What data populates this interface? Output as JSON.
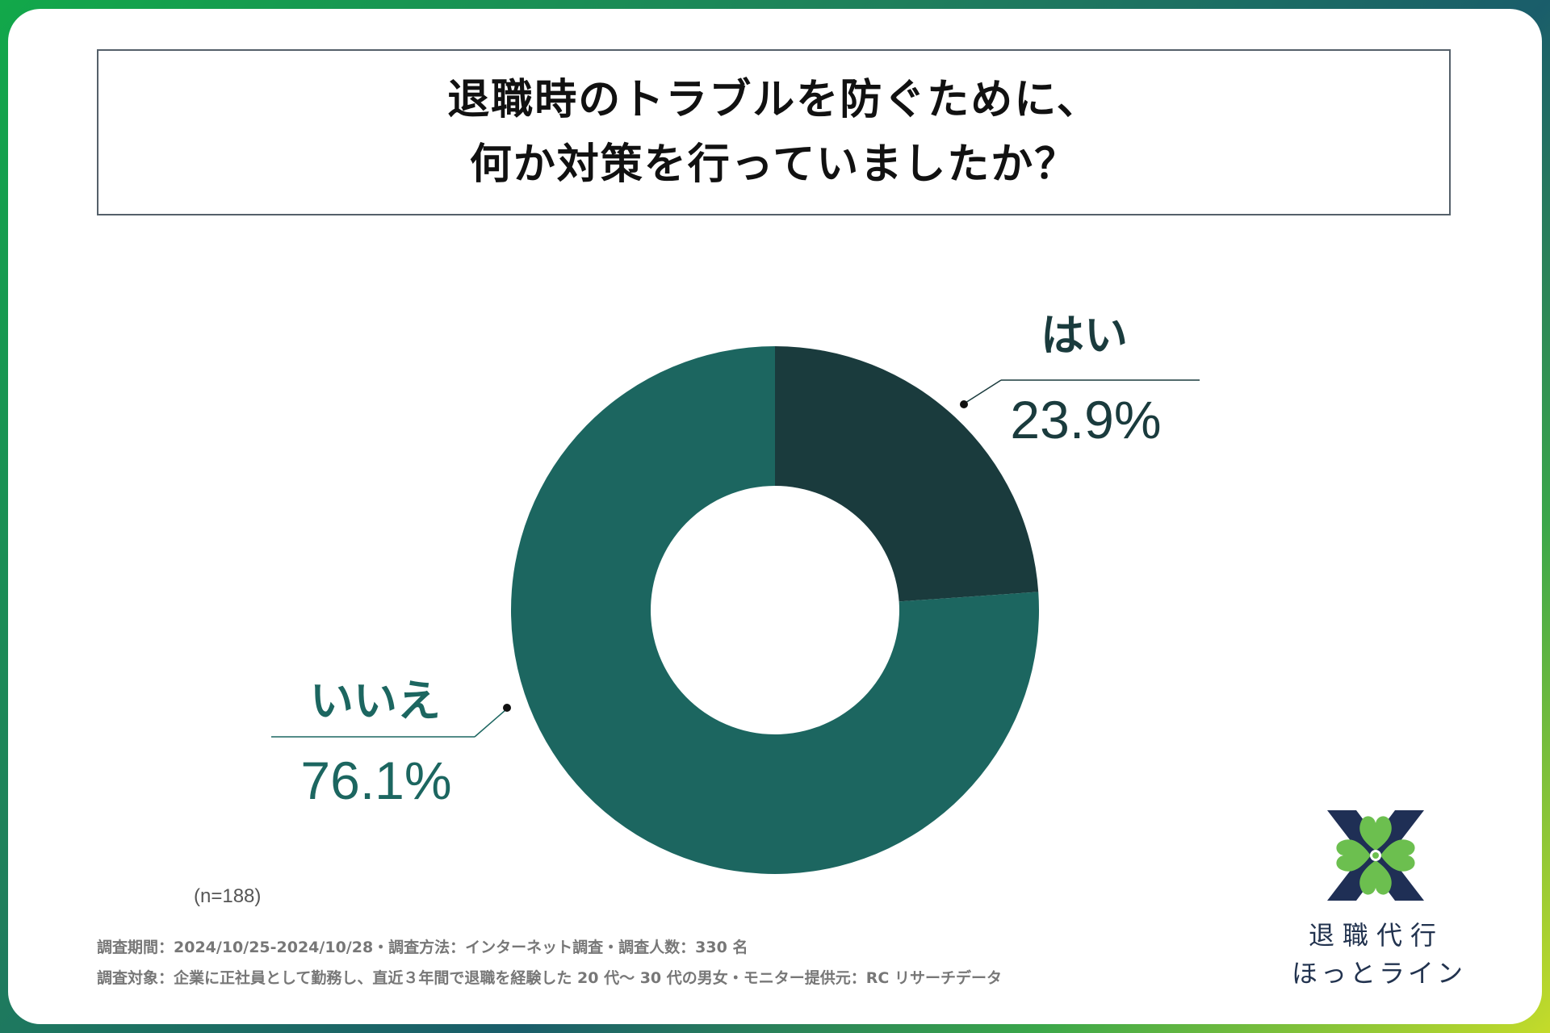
{
  "title_lines": [
    "退職時のトラブルを防ぐために、",
    "何か対策を行っていましたか？"
  ],
  "chart_data": {
    "type": "pie",
    "donut": true,
    "title": "退職時のトラブルを防ぐために、何か対策を行っていましたか？",
    "categories": [
      "はい",
      "いいえ"
    ],
    "values": [
      23.9,
      76.1
    ],
    "value_labels": [
      "23.9%",
      "76.1%"
    ],
    "colors": [
      "#1a3b3d",
      "#1c6660"
    ]
  },
  "sample_size": "(n=188)",
  "footnotes": [
    "調査期間：2024/10/25-2024/10/28・調査方法：インターネット調査・調査人数：330 名",
    "調査対象：企業に正社員として勤務し、直近３年間で退職を経験した 20 代〜 30 代の男女・モニター提供元：RC リサーチデータ"
  ],
  "brand": {
    "line1": "退職代行",
    "line2": "ほっとライン",
    "logo_icon": "clover-heart-logo-icon"
  }
}
